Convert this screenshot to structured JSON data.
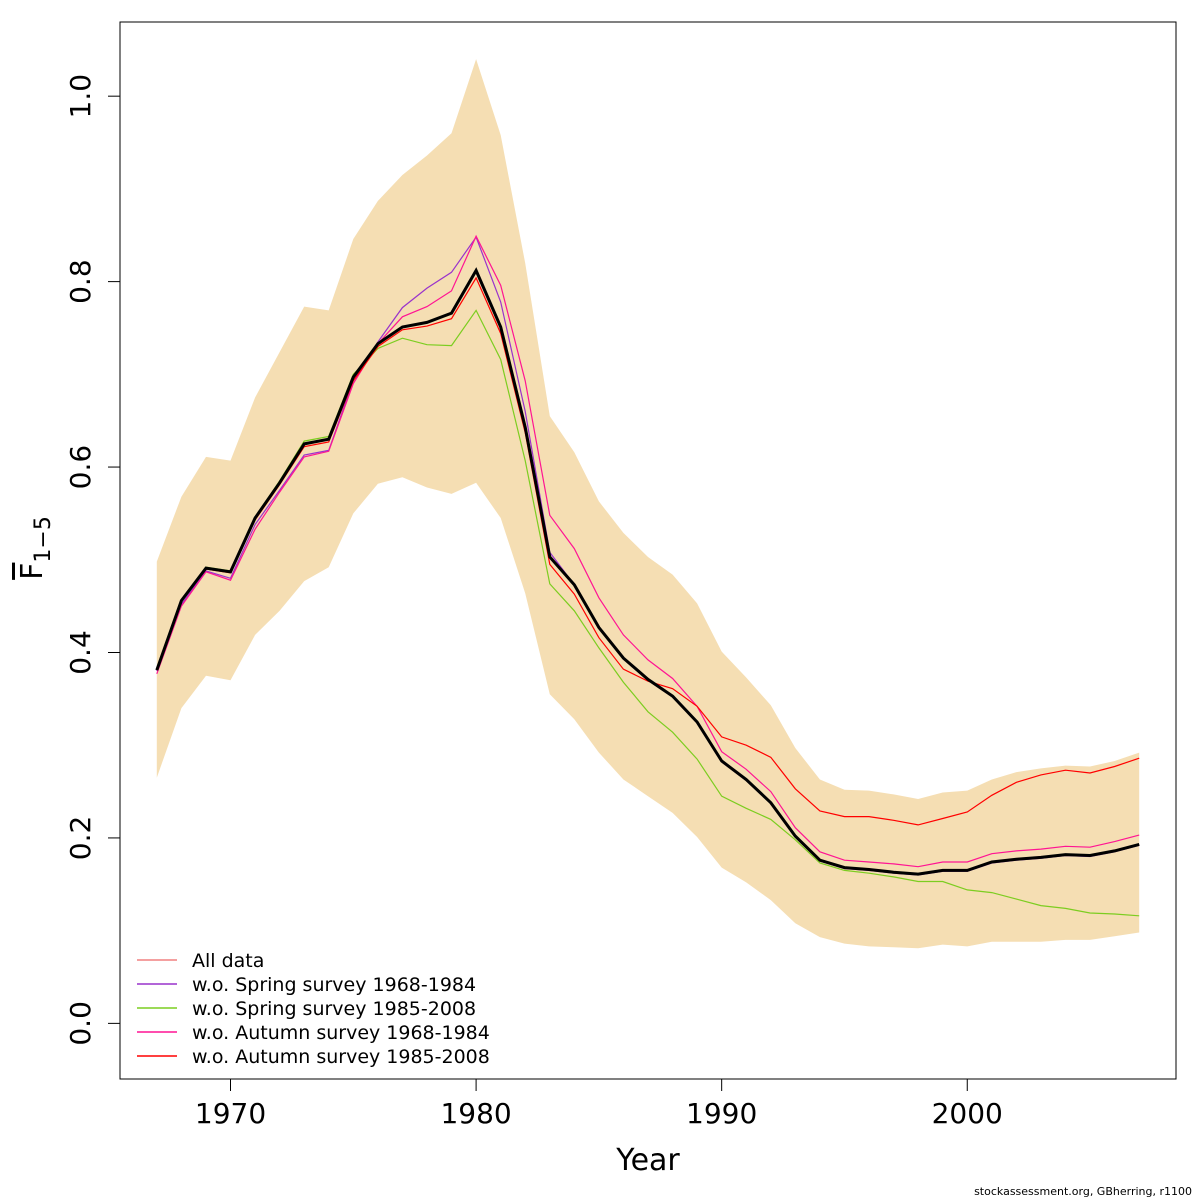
{
  "chart_data": {
    "type": "line",
    "xlabel": "Year",
    "ylabel": "F",
    "ylabel_subscript": "1−5",
    "xlim": [
      1965.5,
      2008.5
    ],
    "ylim": [
      -0.06,
      1.08
    ],
    "x_ticks": [
      1970,
      1980,
      1990,
      2000
    ],
    "x_tick_labels": [
      "1970",
      "1980",
      "1990",
      "2000"
    ],
    "y_ticks": [
      0.0,
      0.2,
      0.4,
      0.6,
      0.8,
      1.0
    ],
    "y_tick_labels": [
      "0.0",
      "0.2",
      "0.4",
      "0.6",
      "0.8",
      "1.0"
    ],
    "grid": false,
    "legend_position": "bottom-left",
    "x": [
      1967,
      1968,
      1969,
      1970,
      1971,
      1972,
      1973,
      1974,
      1975,
      1976,
      1977,
      1978,
      1979,
      1980,
      1981,
      1982,
      1983,
      1984,
      1985,
      1986,
      1987,
      1988,
      1989,
      1990,
      1991,
      1992,
      1993,
      1994,
      1995,
      1996,
      1997,
      1998,
      1999,
      2000,
      2001,
      2002,
      2003,
      2004,
      2005,
      2006,
      2007
    ],
    "band": {
      "color": "#F5DEB3",
      "upper": [
        0.498,
        0.568,
        0.611,
        0.607,
        0.675,
        0.724,
        0.773,
        0.769,
        0.846,
        0.887,
        0.915,
        0.936,
        0.96,
        1.04,
        0.958,
        0.82,
        0.655,
        0.616,
        0.563,
        0.529,
        0.503,
        0.484,
        0.453,
        0.401,
        0.373,
        0.343,
        0.297,
        0.263,
        0.252,
        0.251,
        0.247,
        0.242,
        0.249,
        0.251,
        0.263,
        0.271,
        0.275,
        0.278,
        0.277,
        0.283,
        0.292
      ],
      "lower": [
        0.265,
        0.34,
        0.375,
        0.37,
        0.419,
        0.445,
        0.477,
        0.492,
        0.55,
        0.582,
        0.589,
        0.578,
        0.571,
        0.583,
        0.545,
        0.464,
        0.355,
        0.328,
        0.292,
        0.263,
        0.245,
        0.227,
        0.201,
        0.168,
        0.152,
        0.133,
        0.108,
        0.093,
        0.086,
        0.083,
        0.082,
        0.081,
        0.085,
        0.083,
        0.088,
        0.088,
        0.088,
        0.09,
        0.09,
        0.094,
        0.098
      ]
    },
    "main_series": {
      "color": "#000000",
      "values": [
        0.381,
        0.456,
        0.491,
        0.487,
        0.545,
        0.583,
        0.625,
        0.63,
        0.697,
        0.733,
        0.751,
        0.756,
        0.766,
        0.812,
        0.751,
        0.643,
        0.503,
        0.473,
        0.427,
        0.394,
        0.371,
        0.353,
        0.325,
        0.283,
        0.263,
        0.238,
        0.202,
        0.176,
        0.168,
        0.166,
        0.163,
        0.161,
        0.165,
        0.165,
        0.174,
        0.177,
        0.179,
        0.182,
        0.181,
        0.186,
        0.193
      ]
    },
    "series": [
      {
        "name": "All data",
        "color": "#F08080",
        "values": [
          0.381,
          0.456,
          0.491,
          0.487,
          0.545,
          0.583,
          0.625,
          0.63,
          0.697,
          0.733,
          0.751,
          0.756,
          0.766,
          0.812,
          0.751,
          0.643,
          0.503,
          0.473,
          0.427,
          0.394,
          0.371,
          0.353,
          0.325,
          0.283,
          0.263,
          0.238,
          0.202,
          0.176,
          0.168,
          0.166,
          0.163,
          0.161,
          0.165,
          0.165,
          0.174,
          0.177,
          0.179,
          0.182,
          0.181,
          0.186,
          0.193
        ]
      },
      {
        "name": "w.o. Spring survey 1968-1984",
        "color": "#9932CC",
        "values": [
          0.38,
          0.452,
          0.488,
          0.48,
          0.538,
          0.575,
          0.613,
          0.618,
          0.693,
          0.735,
          0.772,
          0.793,
          0.81,
          0.848,
          0.778,
          0.66,
          0.508,
          0.473,
          0.427,
          0.393,
          0.37,
          0.352,
          0.324,
          0.282,
          0.262,
          0.237,
          0.201,
          0.175,
          0.167,
          0.165,
          0.162,
          0.16,
          0.164,
          0.164,
          0.173,
          0.176,
          0.178,
          0.181,
          0.18,
          0.185,
          0.192
        ]
      },
      {
        "name": "w.o. Spring survey 1985-2008",
        "color": "#7CCD20",
        "values": [
          0.382,
          0.457,
          0.492,
          0.488,
          0.546,
          0.585,
          0.628,
          0.633,
          0.7,
          0.728,
          0.739,
          0.732,
          0.731,
          0.769,
          0.716,
          0.607,
          0.474,
          0.445,
          0.405,
          0.368,
          0.336,
          0.314,
          0.285,
          0.245,
          0.232,
          0.22,
          0.198,
          0.173,
          0.165,
          0.162,
          0.158,
          0.153,
          0.153,
          0.144,
          0.141,
          0.134,
          0.127,
          0.124,
          0.119,
          0.118,
          0.116
        ]
      },
      {
        "name": "w.o. Autumn survey 1968-1984",
        "color": "#FF1493",
        "values": [
          0.377,
          0.45,
          0.487,
          0.478,
          0.533,
          0.573,
          0.611,
          0.617,
          0.69,
          0.733,
          0.762,
          0.773,
          0.79,
          0.849,
          0.796,
          0.693,
          0.548,
          0.512,
          0.459,
          0.419,
          0.392,
          0.372,
          0.342,
          0.293,
          0.274,
          0.25,
          0.211,
          0.185,
          0.176,
          0.174,
          0.172,
          0.169,
          0.174,
          0.174,
          0.183,
          0.186,
          0.188,
          0.191,
          0.19,
          0.196,
          0.203
        ]
      },
      {
        "name": "w.o. Autumn survey 1985-2008",
        "color": "#FF0000",
        "values": [
          0.381,
          0.455,
          0.49,
          0.486,
          0.543,
          0.581,
          0.622,
          0.627,
          0.693,
          0.73,
          0.748,
          0.752,
          0.76,
          0.804,
          0.744,
          0.637,
          0.495,
          0.463,
          0.416,
          0.382,
          0.369,
          0.361,
          0.342,
          0.309,
          0.3,
          0.287,
          0.253,
          0.229,
          0.223,
          0.223,
          0.219,
          0.214,
          0.221,
          0.228,
          0.246,
          0.26,
          0.268,
          0.273,
          0.27,
          0.277,
          0.286
        ]
      }
    ]
  },
  "credit": "stockassessment.org, GBherring, r1100"
}
